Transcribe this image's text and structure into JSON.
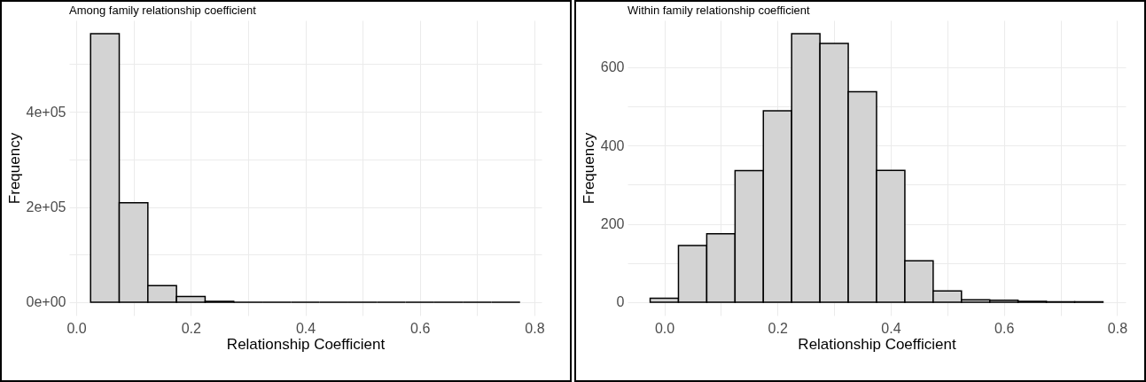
{
  "chart_data": [
    {
      "type": "histogram",
      "title": "Among family relationship coefficient",
      "xlabel": "Relationship Coefficient",
      "ylabel": "Frequency",
      "color": "#d3d3d3",
      "grid": true,
      "bins": [
        0.025,
        0.075,
        0.125,
        0.175,
        0.225,
        0.275,
        0.325,
        0.375,
        0.425,
        0.475,
        0.525,
        0.575,
        0.625,
        0.675,
        0.725,
        0.775
      ],
      "values": [
        564000,
        209000,
        35000,
        12000,
        2000,
        0,
        0,
        0,
        0,
        0,
        0,
        0,
        0,
        0,
        0
      ],
      "xlim": [
        -0.0125,
        0.8125
      ],
      "ylim": [
        -28000,
        592000
      ],
      "xticks": [
        {
          "value": 0,
          "label": "0.0"
        },
        {
          "value": 0.1,
          "label": null
        },
        0.2,
        {
          "value": 0.3,
          "label": null
        },
        0.4,
        {
          "value": 0.5,
          "label": null
        },
        0.6,
        {
          "value": 0.7,
          "label": null
        },
        0.8
      ],
      "yticks": [
        {
          "value": 0,
          "label": "0e+00"
        },
        {
          "value": 100000,
          "label": null
        },
        {
          "value": 200000,
          "label": "2e+05"
        },
        {
          "value": 300000,
          "label": null
        },
        {
          "value": 400000,
          "label": "4e+05"
        },
        {
          "value": 500000,
          "label": null
        }
      ]
    },
    {
      "type": "histogram",
      "title": "Within family relationship coefficient",
      "xlabel": "Relationship Coefficient",
      "ylabel": "Frequency",
      "color": "#d3d3d3",
      "grid": true,
      "bins": [
        -0.025,
        0.025,
        0.075,
        0.125,
        0.175,
        0.225,
        0.275,
        0.325,
        0.375,
        0.425,
        0.475,
        0.525,
        0.575,
        0.625,
        0.675,
        0.725,
        0.775
      ],
      "values": [
        10,
        145,
        175,
        336,
        489,
        686,
        661,
        538,
        337,
        106,
        29,
        6,
        5,
        2,
        1,
        1
      ],
      "xlim": [
        -0.065,
        0.815
      ],
      "ylim": [
        -34,
        720
      ],
      "xticks": [
        {
          "value": 0,
          "label": "0.0"
        },
        {
          "value": 0.1,
          "label": null
        },
        0.2,
        {
          "value": 0.3,
          "label": null
        },
        0.4,
        {
          "value": 0.5,
          "label": null
        },
        0.6,
        {
          "value": 0.7,
          "label": null
        },
        0.8
      ],
      "yticks": [
        0,
        {
          "value": 100,
          "label": null
        },
        200,
        {
          "value": 300,
          "label": null
        },
        400,
        {
          "value": 500,
          "label": null
        },
        600
      ]
    }
  ]
}
